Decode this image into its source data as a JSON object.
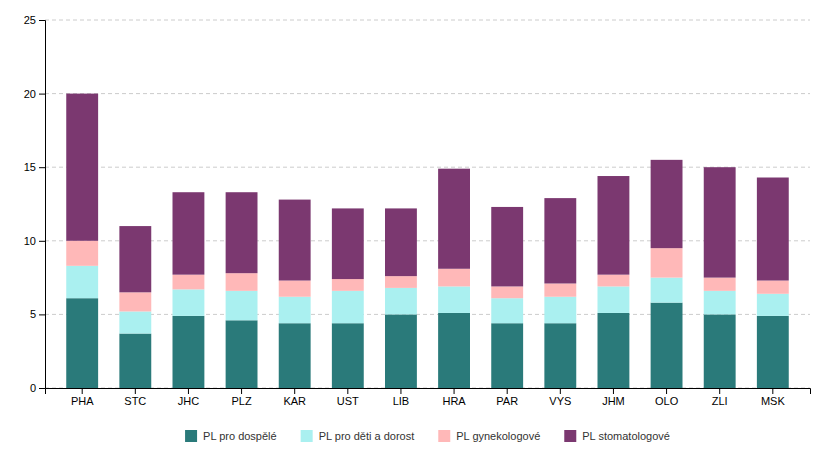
{
  "chart_data": {
    "type": "bar",
    "stacked": true,
    "categories": [
      "PHA",
      "STC",
      "JHC",
      "PLZ",
      "KAR",
      "UST",
      "LIB",
      "HRA",
      "PAR",
      "VYS",
      "JHM",
      "OLO",
      "ZLI",
      "MSK"
    ],
    "series": [
      {
        "name": "PL pro dospělé",
        "color": "#2a7a7a",
        "values": [
          6.1,
          3.7,
          4.9,
          4.6,
          4.4,
          4.4,
          5.0,
          5.1,
          4.4,
          4.4,
          5.1,
          5.8,
          5.0,
          4.9
        ]
      },
      {
        "name": "PL pro děti a dorost",
        "color": "#aaf0f0",
        "values": [
          2.2,
          1.5,
          1.8,
          2.0,
          1.8,
          2.2,
          1.8,
          1.8,
          1.7,
          1.8,
          1.8,
          1.7,
          1.6,
          1.5
        ]
      },
      {
        "name": "PL gynekologové",
        "color": "#ffb8b8",
        "values": [
          1.7,
          1.3,
          1.0,
          1.2,
          1.1,
          0.8,
          0.8,
          1.2,
          0.8,
          0.9,
          0.8,
          2.0,
          0.9,
          0.9
        ]
      },
      {
        "name": "PL stomatologové",
        "color": "#7b3870",
        "values": [
          10.0,
          4.5,
          5.6,
          5.5,
          5.5,
          4.8,
          4.6,
          6.8,
          5.4,
          5.8,
          6.7,
          6.0,
          7.5,
          7.0
        ]
      }
    ],
    "ylim": [
      0,
      25
    ],
    "yticks": [
      0,
      5,
      10,
      15,
      20,
      25
    ],
    "grid": true,
    "legend": "bottom"
  }
}
